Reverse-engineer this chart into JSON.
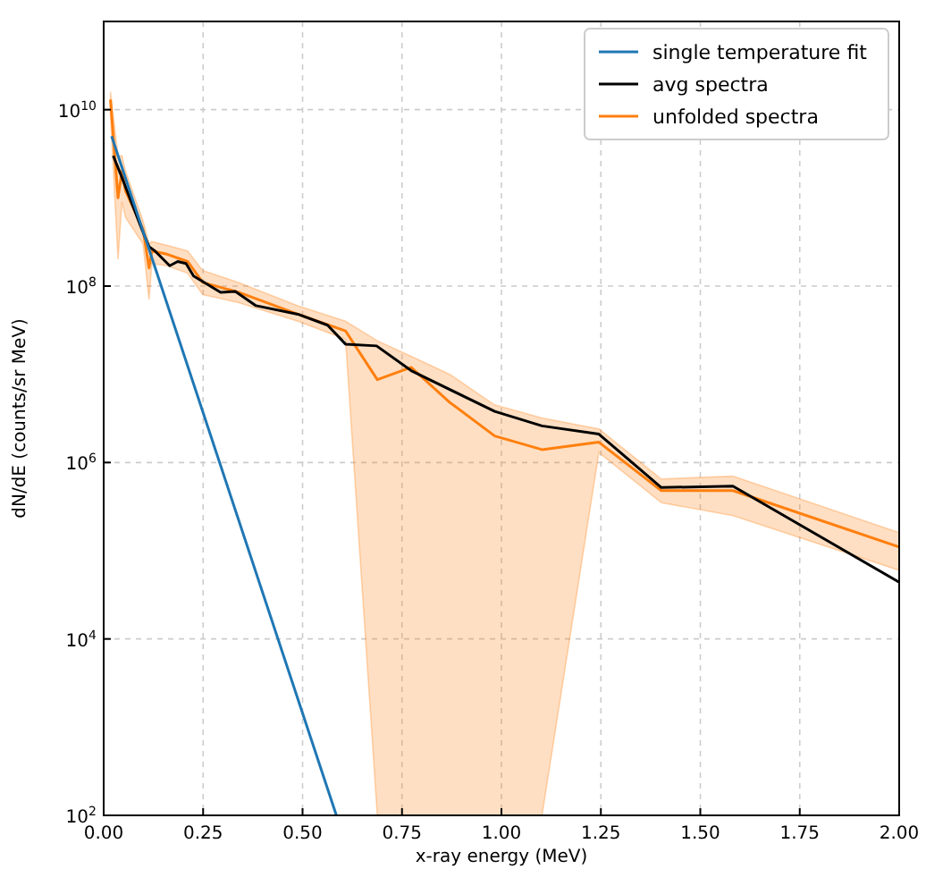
{
  "chart_data": {
    "type": "line",
    "xlabel": "x-ray energy (MeV)",
    "ylabel": "dN/dE (counts/sr MeV)",
    "log": "y",
    "grid": true,
    "legend": "top right",
    "line_style": "solid",
    "marker": "none",
    "xlim": [
      0,
      2
    ],
    "xticks": [
      {
        "value": 0,
        "label": "0.00"
      },
      {
        "value": 0.25,
        "label": "0.25"
      },
      {
        "value": 0.5,
        "label": "0.50"
      },
      {
        "value": 0.75,
        "label": "0.75"
      },
      {
        "value": 1,
        "label": "1.00"
      },
      {
        "value": 1.25,
        "label": "1.25"
      },
      {
        "value": 1.5,
        "label": "1.50"
      },
      {
        "value": 1.75,
        "label": "1.75"
      },
      {
        "value": 2,
        "label": "2.00"
      }
    ],
    "ylim": [
      100,
      100000000000
    ],
    "yticks": [
      {
        "value": 100,
        "label": "10$^{2}$"
      },
      {
        "value": 10000,
        "label": "10$^{4}$"
      },
      {
        "value": 1000000,
        "label": "10$^{6}$"
      },
      {
        "value": 100000000,
        "label": "10$^{8}$"
      },
      {
        "value": 10000000000,
        "label": "10$^{10}$"
      }
    ],
    "series": [
      {
        "name": "single temperature fit",
        "color": "#1f77b4",
        "x": [
          0.02,
          0.585
        ],
        "values": [
          5000000000,
          100
        ]
      },
      {
        "name": "avg spectra",
        "color": "#000000",
        "x": [
          0.024,
          0.046,
          0.096,
          0.114,
          0.129,
          0.166,
          0.186,
          0.207,
          0.226,
          0.294,
          0.331,
          0.383,
          0.488,
          0.563,
          0.608,
          0.686,
          0.773,
          0.983,
          1.102,
          1.245,
          1.402,
          1.582,
          2.0
        ],
        "values": [
          3000000000.0,
          1700000000.0,
          440000000.0,
          280000000.0,
          250000000.0,
          170000000.0,
          190000000.0,
          180000000.0,
          130000000.0,
          85000000.0,
          87000000.0,
          60000000.0,
          48000000.0,
          36000000.0,
          22000000.0,
          21000000.0,
          11000000.0,
          3800000.0,
          2600000.0,
          2100000.0,
          520000.0,
          540000.0,
          44000.0
        ]
      },
      {
        "name": "unfolded spectra",
        "color": "#ff7f0e",
        "x": [
          0.017,
          0.036,
          0.046,
          0.055,
          0.099,
          0.114,
          0.121,
          0.159,
          0.211,
          0.249,
          0.339,
          0.488,
          0.608,
          0.688,
          0.773,
          0.87,
          0.983,
          1.102,
          1.245,
          1.402,
          1.582,
          2.0
        ],
        "values": [
          13000000000.0,
          1000000000.0,
          2000000000.0,
          1200000000.0,
          440000000.0,
          160000000.0,
          250000000.0,
          230000000.0,
          190000000.0,
          110000000.0,
          85000000.0,
          48000000.0,
          31000000.0,
          8700000.0,
          12000000.0,
          4800000.0,
          2000000.0,
          1400000.0,
          1700000.0,
          480000.0,
          480000.0,
          110000.0
        ],
        "upper": [
          16000000000.0,
          3000000000.0,
          3000000000.0,
          2000000000.0,
          550000000.0,
          300000000.0,
          320000000.0,
          290000000.0,
          250000000.0,
          150000000.0,
          110000000.0,
          60000000.0,
          40000000.0,
          24000000.0,
          16000000.0,
          10000000.0,
          4500000.0,
          3200000.0,
          2400000.0,
          650000.0,
          700000.0,
          160000.0
        ],
        "lower": [
          9000000000.0,
          200000000.0,
          900000000.0,
          600000000.0,
          300000000.0,
          70000000.0,
          180000000.0,
          170000000.0,
          140000000.0,
          80000000.0,
          65000000.0,
          40000000.0,
          25000000.0,
          100,
          100,
          100,
          100,
          100,
          1300000.0,
          350000.0,
          250000.0,
          60000.0
        ]
      }
    ]
  }
}
